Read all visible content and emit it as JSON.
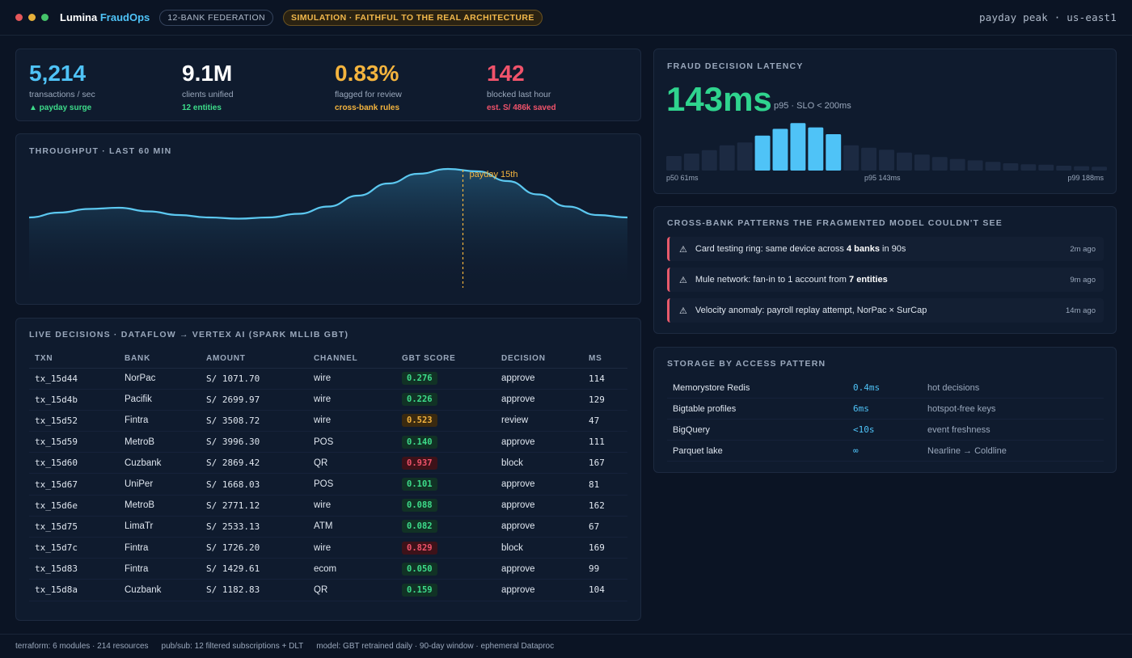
{
  "window": {
    "brand_main": "Lumina",
    "brand_accent": "FraudOps",
    "badge_federation": "12-BANK FEDERATION",
    "badge_simulation": "SIMULATION · FAITHFUL TO THE REAL ARCHITECTURE",
    "context": "payday peak · us-east1"
  },
  "kpis": [
    {
      "value": "5,214",
      "label": "transactions / sec",
      "sub": "▲ payday surge",
      "color": "#4fc3f7",
      "sub_color": "#3ddc8a"
    },
    {
      "value": "9.1M",
      "label": "clients unified",
      "sub": "12 entities",
      "color": "#ffffff",
      "sub_color": "#3ddc8a"
    },
    {
      "value": "0.83%",
      "label": "flagged for review",
      "sub": "cross-bank rules",
      "color": "#f4b43e",
      "sub_color": "#f4b43e"
    },
    {
      "value": "142",
      "label": "blocked last hour",
      "sub": "est. S/ 486k saved",
      "color": "#f0536b",
      "sub_color": "#f0536b"
    }
  ],
  "throughput": {
    "title": "THROUGHPUT · LAST 60 MIN",
    "annotation": "payday 15th",
    "curve": [
      0.58,
      0.62,
      0.65,
      0.66,
      0.63,
      0.6,
      0.58,
      0.57,
      0.58,
      0.61,
      0.67,
      0.76,
      0.86,
      0.94,
      0.98,
      0.96,
      0.88,
      0.77,
      0.67,
      0.6,
      0.58
    ],
    "marker_index": 14.5
  },
  "live": {
    "title": "LIVE DECISIONS · DATAFLOW → VERTEX AI (SPARK MLLIB GBT)",
    "headers": [
      "TXN",
      "BANK",
      "AMOUNT",
      "CHANNEL",
      "GBT SCORE",
      "DECISION",
      "MS"
    ],
    "rows": [
      {
        "txn": "tx_15d44",
        "bank": "NorPac",
        "amount": "S/ 1071.70",
        "channel": "wire",
        "score": "0.276",
        "level": "ok",
        "decision": "approve",
        "ms": "114"
      },
      {
        "txn": "tx_15d4b",
        "bank": "Pacifik",
        "amount": "S/ 2699.97",
        "channel": "wire",
        "score": "0.226",
        "level": "ok",
        "decision": "approve",
        "ms": "129"
      },
      {
        "txn": "tx_15d52",
        "bank": "Fintra",
        "amount": "S/ 3508.72",
        "channel": "wire",
        "score": "0.523",
        "level": "rev",
        "decision": "review",
        "ms": "47"
      },
      {
        "txn": "tx_15d59",
        "bank": "MetroB",
        "amount": "S/ 3996.30",
        "channel": "POS",
        "score": "0.140",
        "level": "ok",
        "decision": "approve",
        "ms": "111"
      },
      {
        "txn": "tx_15d60",
        "bank": "Cuzbank",
        "amount": "S/ 2869.42",
        "channel": "QR",
        "score": "0.937",
        "level": "bad",
        "decision": "block",
        "ms": "167"
      },
      {
        "txn": "tx_15d67",
        "bank": "UniPer",
        "amount": "S/ 1668.03",
        "channel": "POS",
        "score": "0.101",
        "level": "ok",
        "decision": "approve",
        "ms": "81"
      },
      {
        "txn": "tx_15d6e",
        "bank": "MetroB",
        "amount": "S/ 2771.12",
        "channel": "wire",
        "score": "0.088",
        "level": "ok",
        "decision": "approve",
        "ms": "162"
      },
      {
        "txn": "tx_15d75",
        "bank": "LimaTr",
        "amount": "S/ 2533.13",
        "channel": "ATM",
        "score": "0.082",
        "level": "ok",
        "decision": "approve",
        "ms": "67"
      },
      {
        "txn": "tx_15d7c",
        "bank": "Fintra",
        "amount": "S/ 1726.20",
        "channel": "wire",
        "score": "0.829",
        "level": "bad",
        "decision": "block",
        "ms": "169"
      },
      {
        "txn": "tx_15d83",
        "bank": "Fintra",
        "amount": "S/ 1429.61",
        "channel": "ecom",
        "score": "0.050",
        "level": "ok",
        "decision": "approve",
        "ms": "99"
      },
      {
        "txn": "tx_15d8a",
        "bank": "Cuzbank",
        "amount": "S/ 1182.83",
        "channel": "QR",
        "score": "0.159",
        "level": "ok",
        "decision": "approve",
        "ms": "104"
      }
    ]
  },
  "latency": {
    "title": "FRAUD DECISION LATENCY",
    "value": "143ms",
    "caption": "p95 · SLO < 200ms",
    "bars": [
      0.3,
      0.35,
      0.42,
      0.52,
      0.58,
      0.72,
      0.86,
      0.98,
      0.89,
      0.75,
      0.52,
      0.47,
      0.43,
      0.37,
      0.33,
      0.28,
      0.24,
      0.21,
      0.18,
      0.15,
      0.13,
      0.12,
      0.1,
      0.09,
      0.08
    ],
    "highlight_from": 5,
    "highlight_to": 9,
    "label_p50": "p50 61ms",
    "label_p95": "p95 143ms",
    "label_p99": "p99 188ms"
  },
  "patterns": {
    "title": "CROSS-BANK PATTERNS THE FRAGMENTED MODEL COULDN'T SEE",
    "items": [
      {
        "pre": "Card testing ring: same device across ",
        "bold": "4 banks",
        "post": " in 90s",
        "time": "2m ago"
      },
      {
        "pre": "Mule network: fan-in to 1 account from ",
        "bold": "7 entities",
        "post": "",
        "time": "9m ago"
      },
      {
        "pre": "Velocity anomaly: payroll replay attempt, NorPac × SurCap",
        "bold": "",
        "post": "",
        "time": "14m ago"
      }
    ]
  },
  "storage": {
    "title": "STORAGE BY ACCESS PATTERN",
    "rows": [
      {
        "name": "Memorystore Redis",
        "value": "0.4ms",
        "desc": "hot decisions"
      },
      {
        "name": "Bigtable profiles",
        "value": "6ms",
        "desc": "hotspot-free keys"
      },
      {
        "name": "BigQuery",
        "value": "<10s",
        "desc": "event freshness"
      },
      {
        "name": "Parquet lake",
        "value": "∞",
        "desc": "Nearline → Coldline"
      }
    ]
  },
  "footer": [
    "terraform: 6 modules · 214 resources",
    "pub/sub: 12 filtered subscriptions + DLT",
    "model: GBT retrained daily · 90-day window · ephemeral Dataproc"
  ]
}
